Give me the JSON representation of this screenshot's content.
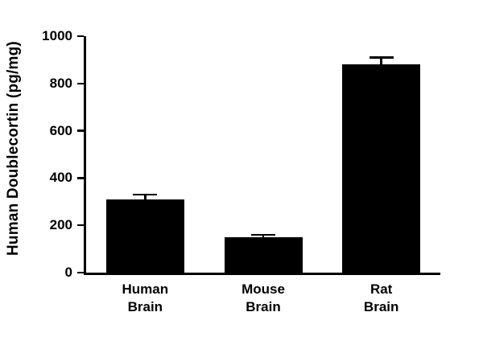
{
  "chart_data": {
    "type": "bar",
    "title": "",
    "ylabel": "Human Doublecortin (pg/mg)",
    "xlabel": "",
    "categories": [
      "Human Brain",
      "Mouse Brain",
      "Rat Brain"
    ],
    "values": [
      310,
      150,
      880
    ],
    "errors": [
      20,
      10,
      30
    ],
    "ylim": [
      0,
      1000
    ],
    "yticks": [
      0,
      200,
      400,
      600,
      800,
      1000
    ],
    "bar_color": "#000000",
    "axis_color": "#000000",
    "background_color": "#ffffff",
    "grid": false,
    "legend_position": "none"
  }
}
